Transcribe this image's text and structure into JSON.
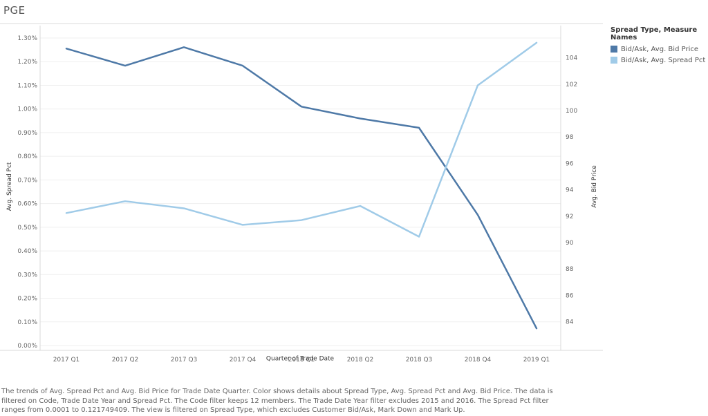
{
  "title": "PGE",
  "legend": {
    "title": "Spread Type, Measure Names",
    "items": [
      {
        "label": "Bid/Ask, Avg. Bid Price",
        "color": "#4e79a7"
      },
      {
        "label": "Bid/Ask, Avg. Spread Pct",
        "color": "#a0cbe8"
      }
    ]
  },
  "caption": "The trends of Avg. Spread Pct and Avg. Bid Price for Trade Date Quarter.  Color shows details about Spread Type, Avg. Spread Pct and Avg. Bid Price. The data is filtered on Code, Trade Date Year and Spread Pct. The Code filter keeps 12 members. The Trade Date Year filter excludes 2015 and 2016. The Spread Pct filter ranges from 0.0001 to 0.121749409. The view is filtered on Spread Type, which excludes Customer Bid/Ask, Mark Down and Mark Up.",
  "chart_data": {
    "type": "line",
    "title": "PGE",
    "xlabel": "Quarter of Trade Date",
    "ylabel_left": "Avg. Spread Pct",
    "ylabel_right": "Avg. Bid Price",
    "categories": [
      "2017 Q1",
      "2017 Q2",
      "2017 Q3",
      "2017 Q4",
      "2018 Q1",
      "2018 Q2",
      "2018 Q3",
      "2018 Q4",
      "2019 Q1"
    ],
    "left_axis": {
      "range": [
        0,
        1.3
      ],
      "ticks": [
        0.0,
        0.1,
        0.2,
        0.3,
        0.4,
        0.5,
        0.6,
        0.7,
        0.8,
        0.9,
        1.0,
        1.1,
        1.2,
        1.3
      ],
      "tick_labels": [
        "0.00%",
        "0.10%",
        "0.20%",
        "0.30%",
        "0.40%",
        "0.50%",
        "0.60%",
        "0.70%",
        "0.80%",
        "0.90%",
        "1.00%",
        "1.10%",
        "1.20%",
        "1.30%"
      ]
    },
    "right_axis": {
      "range": [
        82.2,
        105.5
      ],
      "ticks": [
        84,
        86,
        88,
        90,
        92,
        94,
        96,
        98,
        100,
        102,
        104
      ],
      "tick_labels": [
        "84",
        "86",
        "88",
        "90",
        "92",
        "94",
        "96",
        "98",
        "100",
        "102",
        "104"
      ]
    },
    "series": [
      {
        "name": "Bid/Ask, Avg. Bid Price",
        "axis": "right",
        "color": "#4e79a7",
        "values": [
          104.7,
          103.4,
          104.8,
          103.4,
          100.3,
          99.4,
          98.7,
          92.1,
          83.5
        ]
      },
      {
        "name": "Bid/Ask, Avg. Spread Pct",
        "axis": "left",
        "color": "#a0cbe8",
        "values": [
          0.56,
          0.61,
          0.58,
          0.51,
          0.53,
          0.59,
          0.46,
          1.1,
          1.28
        ]
      }
    ],
    "grid": true,
    "legend_position": "right"
  }
}
